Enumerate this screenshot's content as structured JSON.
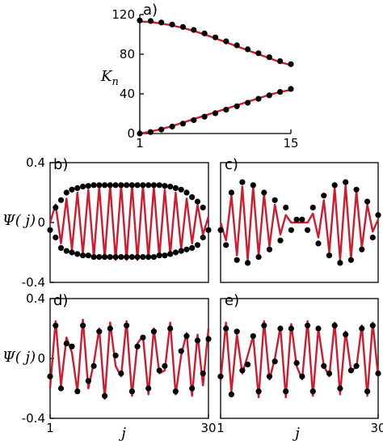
{
  "colors": {
    "line": "#d01b2e",
    "dots": "#000000",
    "axes": "#000000",
    "background": "#ffffff"
  },
  "chart_data": [
    {
      "id": "a",
      "type": "scatter",
      "panel_label": "a)",
      "ylabel": "K",
      "ylabel_sub": "n",
      "xlabel": "",
      "xlim": [
        1,
        15
      ],
      "ylim": [
        0,
        120
      ],
      "xticks": [
        1,
        15
      ],
      "yticks": [
        0,
        40,
        80,
        120
      ],
      "grid": false,
      "series": [
        {
          "kind": "points",
          "x": [
            1,
            2,
            3,
            4,
            5,
            6,
            7,
            8,
            9,
            10,
            11,
            12,
            13,
            14,
            15
          ],
          "y": [
            114,
            113.5,
            112,
            110,
            107.5,
            104.5,
            101,
            97,
            93,
            89,
            85,
            81,
            77,
            73,
            70
          ]
        },
        {
          "kind": "points",
          "x": [
            1,
            2,
            3,
            4,
            5,
            6,
            7,
            8,
            9,
            10,
            11,
            12,
            13,
            14,
            15
          ],
          "y": [
            0,
            1.5,
            4,
            7,
            10,
            13.5,
            17,
            20.5,
            24,
            27.5,
            31,
            35,
            38.5,
            42,
            45
          ]
        },
        {
          "kind": "line",
          "x": [
            1,
            2,
            3,
            4,
            5,
            6,
            7,
            8,
            9,
            10,
            11,
            12,
            13,
            14,
            15
          ],
          "y": [
            113,
            112.5,
            111,
            109,
            106.5,
            103.5,
            100,
            96,
            92,
            88,
            84,
            80,
            76,
            72,
            69
          ]
        },
        {
          "kind": "line",
          "x": [
            1,
            2,
            3,
            4,
            5,
            6,
            7,
            8,
            9,
            10,
            11,
            12,
            13,
            14,
            15
          ],
          "y": [
            0,
            2,
            4.5,
            7.5,
            11,
            14.5,
            18,
            21.5,
            25,
            28.5,
            32,
            35.5,
            39,
            42,
            44
          ]
        }
      ]
    },
    {
      "id": "b",
      "type": "scatter",
      "panel_label": "b)",
      "ylabel": "Ψ( j)",
      "xlabel": "",
      "xlim": [
        1,
        30
      ],
      "ylim": [
        -0.4,
        0.4
      ],
      "yticks": [
        0.4,
        0,
        -0.4
      ],
      "ytick_labels": [
        "0.4",
        "0",
        "-0.4"
      ],
      "grid": false,
      "series": [
        {
          "kind": "points",
          "x": [
            1,
            2,
            3,
            4,
            5,
            6,
            7,
            8,
            9,
            10,
            11,
            12,
            13,
            14,
            15,
            16,
            17,
            18,
            19,
            20,
            21,
            22,
            23,
            24,
            25,
            26,
            27,
            28,
            29,
            30
          ],
          "y": [
            -0.05,
            0.1,
            0.15,
            0.2,
            0.22,
            0.23,
            0.24,
            0.245,
            0.25,
            0.25,
            0.25,
            0.25,
            0.25,
            0.25,
            0.25,
            0.25,
            0.25,
            0.25,
            0.25,
            0.25,
            0.25,
            0.245,
            0.24,
            0.23,
            0.22,
            0.2,
            0.17,
            0.14,
            0.1,
            -0.05
          ]
        },
        {
          "kind": "points",
          "x": [
            2,
            3,
            4,
            5,
            6,
            7,
            8,
            9,
            10,
            11,
            12,
            13,
            14,
            15,
            16,
            17,
            18,
            19,
            20,
            21,
            22,
            23,
            24,
            25,
            26,
            27,
            28,
            29
          ],
          "y": [
            -0.1,
            -0.17,
            -0.19,
            -0.2,
            -0.21,
            -0.22,
            -0.22,
            -0.23,
            -0.23,
            -0.23,
            -0.23,
            -0.23,
            -0.23,
            -0.23,
            -0.23,
            -0.23,
            -0.23,
            -0.23,
            -0.23,
            -0.22,
            -0.22,
            -0.21,
            -0.2,
            -0.19,
            -0.18,
            -0.17,
            -0.15,
            -0.1
          ]
        },
        {
          "kind": "line",
          "x": [
            1,
            2,
            3,
            4,
            5,
            6,
            7,
            8,
            9,
            10,
            11,
            12,
            13,
            14,
            15,
            16,
            17,
            18,
            19,
            20,
            21,
            22,
            23,
            24,
            25,
            26,
            27,
            28,
            29,
            30
          ],
          "y": [
            0,
            0.12,
            -0.14,
            0.16,
            -0.18,
            0.2,
            -0.21,
            0.22,
            -0.23,
            0.24,
            -0.24,
            0.25,
            -0.25,
            0.25,
            -0.25,
            0.25,
            -0.25,
            0.25,
            -0.24,
            0.24,
            -0.23,
            0.22,
            -0.21,
            0.2,
            -0.18,
            0.16,
            -0.14,
            0.12,
            -0.08,
            0.04
          ]
        }
      ]
    },
    {
      "id": "c",
      "type": "scatter",
      "panel_label": "c)",
      "ylabel": "",
      "xlabel": "",
      "xlim": [
        1,
        30
      ],
      "ylim": [
        -0.4,
        0.4
      ],
      "grid": false,
      "series": [
        {
          "kind": "points",
          "x": [
            1,
            2,
            3,
            4,
            5,
            6,
            7,
            8,
            9,
            10,
            11,
            12,
            13,
            14,
            15,
            16,
            17,
            18,
            19,
            20,
            21,
            22,
            23,
            24,
            25,
            26,
            27,
            28,
            29,
            30
          ],
          "y": [
            -0.05,
            -0.15,
            0.2,
            -0.25,
            0.27,
            -0.27,
            0.25,
            -0.23,
            0.2,
            -0.18,
            0.15,
            -0.12,
            0.1,
            -0.05,
            0.02,
            0.02,
            -0.05,
            0.1,
            -0.14,
            0.18,
            -0.22,
            0.25,
            -0.27,
            0.27,
            -0.25,
            0.22,
            -0.18,
            0.14,
            -0.1,
            0.05
          ]
        },
        {
          "kind": "line",
          "x": [
            1,
            2,
            3,
            4,
            5,
            6,
            7,
            8,
            9,
            10,
            11,
            12,
            13,
            14,
            15,
            16,
            17,
            18,
            19,
            20,
            21,
            22,
            23,
            24,
            25,
            26,
            27,
            28,
            29,
            30
          ],
          "y": [
            0,
            -0.12,
            0.18,
            -0.22,
            0.24,
            -0.25,
            0.24,
            -0.22,
            0.19,
            -0.16,
            0.12,
            -0.08,
            0.05,
            0,
            0,
            0,
            0,
            0.06,
            -0.1,
            0.15,
            -0.2,
            0.23,
            -0.25,
            0.25,
            -0.24,
            0.21,
            -0.17,
            0.12,
            -0.06,
            0.02
          ]
        }
      ]
    },
    {
      "id": "d",
      "type": "scatter",
      "panel_label": "d)",
      "ylabel": "Ψ( j)",
      "xlabel": "j",
      "xlim": [
        1,
        30
      ],
      "ylim": [
        -0.4,
        0.4
      ],
      "xticks": [
        1,
        30
      ],
      "yticks": [
        0.4,
        0,
        -0.4
      ],
      "ytick_labels": [
        "0.4",
        "0",
        "-0.4"
      ],
      "grid": false,
      "series": [
        {
          "kind": "points",
          "x": [
            1,
            2,
            3,
            4,
            5,
            6,
            7,
            8,
            9,
            10,
            11,
            12,
            13,
            14,
            15,
            16,
            17,
            18,
            19,
            20,
            21,
            22,
            23,
            24,
            25,
            26,
            27,
            28,
            29,
            30
          ],
          "y": [
            -0.12,
            0.22,
            -0.2,
            0.1,
            0.08,
            -0.22,
            0.22,
            -0.15,
            -0.05,
            0.18,
            -0.25,
            0.2,
            0.02,
            -0.1,
            0.22,
            -0.22,
            0.08,
            0.14,
            -0.2,
            0.18,
            -0.08,
            -0.05,
            0.2,
            -0.22,
            0.05,
            0.15,
            -0.2,
            0.12,
            -0.1,
            0.13
          ]
        },
        {
          "kind": "line",
          "x": [
            1,
            2,
            3,
            4,
            5,
            6,
            7,
            8,
            9,
            10,
            11,
            12,
            13,
            14,
            15,
            16,
            17,
            18,
            19,
            20,
            21,
            22,
            23,
            24,
            25,
            26,
            27,
            28,
            29,
            30
          ],
          "y": [
            -0.2,
            0.25,
            -0.18,
            0.14,
            0.04,
            -0.22,
            0.26,
            -0.2,
            -0.03,
            0.2,
            -0.27,
            0.24,
            -0.05,
            -0.12,
            0.25,
            -0.25,
            0.1,
            0.15,
            -0.24,
            0.2,
            -0.1,
            -0.08,
            0.24,
            -0.24,
            0.02,
            0.17,
            -0.25,
            0.16,
            -0.18,
            0.2
          ]
        }
      ]
    },
    {
      "id": "e",
      "type": "scatter",
      "panel_label": "e)",
      "ylabel": "",
      "xlabel": "j",
      "xlim": [
        1,
        30
      ],
      "ylim": [
        -0.4,
        0.4
      ],
      "xticks": [
        1,
        30
      ],
      "grid": false,
      "series": [
        {
          "kind": "points",
          "x": [
            1,
            2,
            3,
            4,
            5,
            6,
            7,
            8,
            9,
            10,
            11,
            12,
            13,
            14,
            15,
            16,
            17,
            18,
            19,
            20,
            21,
            22,
            23,
            24,
            25,
            26,
            27,
            28,
            29,
            30
          ],
          "y": [
            -0.12,
            0.2,
            -0.24,
            0.18,
            -0.08,
            -0.04,
            0.15,
            -0.22,
            0.22,
            -0.12,
            -0.02,
            0.2,
            -0.22,
            0.2,
            -0.03,
            -0.12,
            0.22,
            -0.22,
            0.2,
            -0.05,
            -0.1,
            0.22,
            -0.2,
            0.16,
            -0.08,
            -0.05,
            0.2,
            -0.22,
            0.22,
            -0.1
          ]
        },
        {
          "kind": "line",
          "x": [
            1,
            2,
            3,
            4,
            5,
            6,
            7,
            8,
            9,
            10,
            11,
            12,
            13,
            14,
            15,
            16,
            17,
            18,
            19,
            20,
            21,
            22,
            23,
            24,
            25,
            26,
            27,
            28,
            29,
            30
          ],
          "y": [
            -0.15,
            0.24,
            -0.22,
            0.16,
            -0.1,
            0.02,
            0.15,
            -0.26,
            0.25,
            -0.14,
            0,
            0.21,
            -0.26,
            0.23,
            -0.05,
            -0.14,
            0.25,
            -0.25,
            0.2,
            -0.05,
            -0.12,
            0.24,
            -0.24,
            0.18,
            -0.08,
            -0.06,
            0.22,
            -0.25,
            0.24,
            -0.12
          ]
        }
      ]
    }
  ]
}
